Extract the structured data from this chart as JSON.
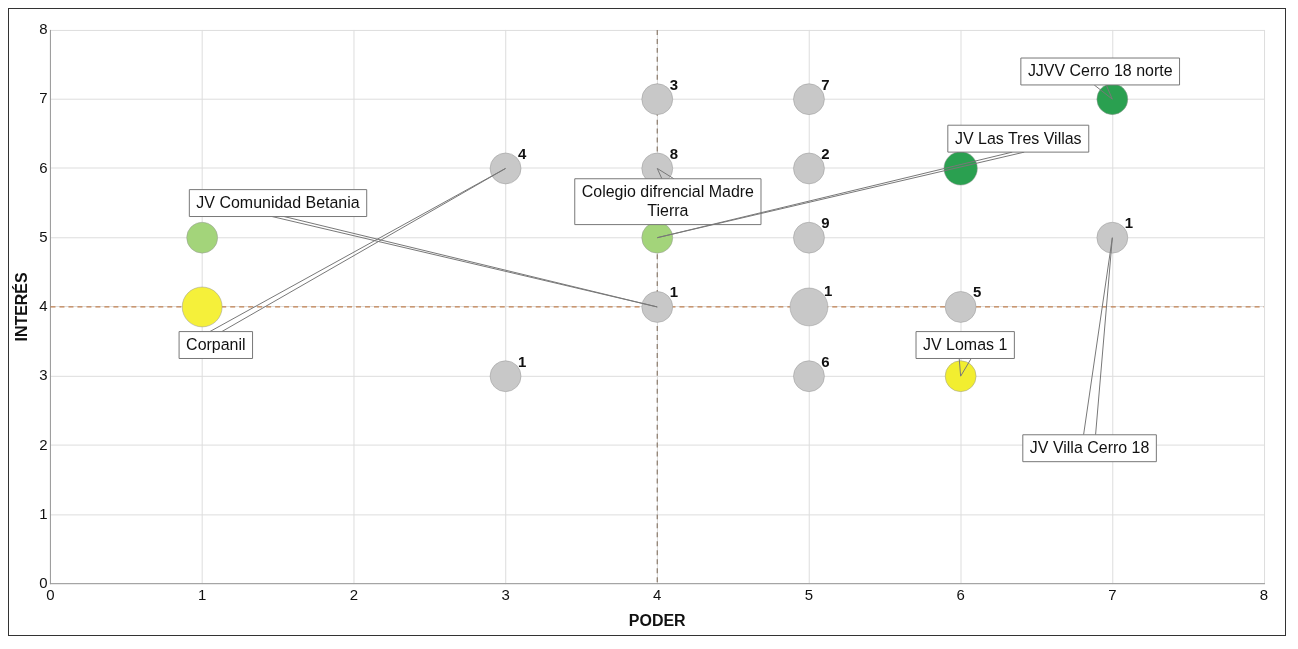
{
  "chart_data": {
    "type": "bubble",
    "xlabel": "PODER",
    "ylabel": "INTERÉS",
    "x": [
      1,
      1,
      3,
      3,
      4,
      4,
      4,
      4,
      5,
      5,
      5,
      5,
      5,
      6,
      6,
      6,
      7,
      7
    ],
    "values": [
      5,
      4,
      6,
      3,
      7,
      6,
      5,
      4,
      7,
      6,
      5,
      4,
      3,
      6,
      4,
      3,
      7,
      5
    ],
    "sizes": [
      0.6,
      1,
      0.6,
      0.6,
      0.6,
      0.6,
      0.6,
      0.6,
      0.6,
      0.6,
      0.6,
      0.9,
      0.6,
      0.7,
      0.6,
      0.6,
      0.6,
      0.6
    ],
    "colors": [
      "#a3d47a",
      "#f5f03a",
      "#c8c8c8",
      "#c8c8c8",
      "#c8c8c8",
      "#c8c8c8",
      "#a3d47a",
      "#c8c8c8",
      "#c8c8c8",
      "#c8c8c8",
      "#c8c8c8",
      "#c8c8c8",
      "#c8c8c8",
      "#2aa050",
      "#c8c8c8",
      "#f2ee30",
      "#2aa050",
      "#c8c8c8"
    ],
    "xlim": [
      0,
      8
    ],
    "ylim": [
      0,
      8
    ],
    "xticks": [
      0,
      1,
      2,
      3,
      4,
      5,
      6,
      7,
      8
    ],
    "yticks": [
      0,
      1,
      2,
      3,
      4,
      5,
      6,
      7,
      8
    ],
    "grid": true,
    "legend": false,
    "ref_lines": [
      {
        "axis": "x",
        "value": 4,
        "color": "#8a7a6a",
        "line_style": "dashed"
      },
      {
        "axis": "y",
        "value": 4,
        "color": "#c08050",
        "line_style": "dashed"
      }
    ],
    "annotations": [
      "JV Comunidad Betania",
      "Corpanil",
      {
        "text": "Colegio difrencial Madre Tierra",
        "x": 4,
        "y": 6
      },
      "JV Las Tres Villas",
      {
        "text": "JJVV Cerro 18 norte",
        "x": 7,
        "y": 7
      },
      {
        "text": "JV Lomas 1",
        "x": 6,
        "y": 3
      },
      "JV Villa Cerro 18",
      {
        "text": "4",
        "x": 3,
        "y": 6
      },
      {
        "text": "1",
        "x": 3,
        "y": 3
      },
      {
        "text": "3",
        "x": 4,
        "y": 7
      },
      {
        "text": "8",
        "x": 4,
        "y": 6
      },
      {
        "text": "1",
        "x": 4,
        "y": 4
      },
      {
        "text": "7",
        "x": 5,
        "y": 7
      },
      {
        "text": "2",
        "x": 5,
        "y": 6
      },
      {
        "text": "9",
        "x": 5,
        "y": 5
      },
      {
        "text": "1",
        "x": 5,
        "y": 4
      },
      {
        "text": "6",
        "x": 5,
        "y": 3
      },
      {
        "text": "5",
        "x": 6,
        "y": 4
      },
      {
        "text": "1",
        "x": 7,
        "y": 5
      }
    ]
  }
}
